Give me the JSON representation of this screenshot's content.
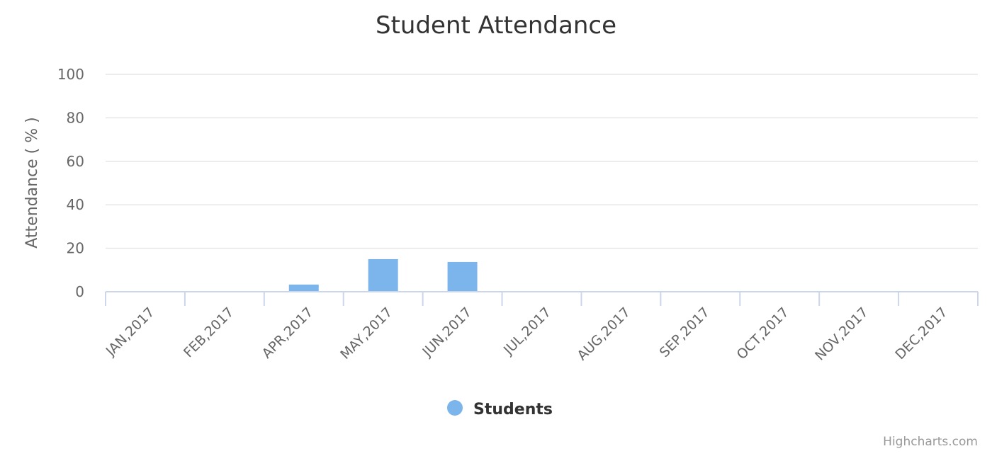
{
  "chart_data": {
    "type": "bar",
    "title": "Student Attendance",
    "ylabel": "Attendance ( % )",
    "xlabel": "",
    "ylim": [
      0,
      100
    ],
    "yticks": [
      "0",
      "20",
      "40",
      "60",
      "80",
      "100"
    ],
    "categories": [
      "JAN,2017",
      "FEB,2017",
      "APR,2017",
      "MAY,2017",
      "JUN,2017",
      "JUL,2017",
      "AUG,2017",
      "SEP,2017",
      "OCT,2017",
      "NOV,2017",
      "DEC,2017"
    ],
    "series": [
      {
        "name": "Students",
        "color": "#7cb5ec",
        "values": [
          0,
          0,
          3.3,
          15,
          13.7,
          0,
          0,
          0,
          0,
          0,
          0
        ]
      }
    ],
    "grid": true,
    "legend": "bottom-center"
  },
  "credits": "Highcharts.com"
}
